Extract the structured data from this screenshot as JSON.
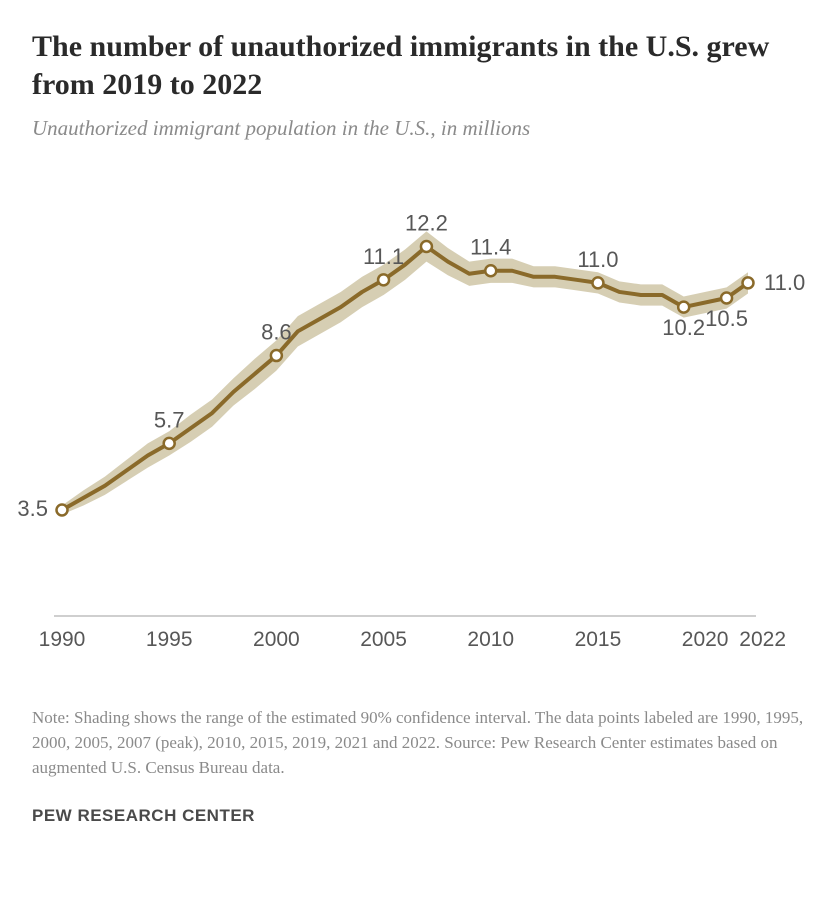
{
  "title": "The number of unauthorized immigrants in the U.S. grew from 2019 to 2022",
  "subtitle": "Unauthorized immigrant population in the U.S., in millions",
  "note": "Note: Shading shows the range of the estimated 90% confidence interval. The data points labeled are 1990, 1995, 2000, 2005, 2007 (peak), 2010, 2015, 2019, 2021 and 2022. Source: Pew Research Center estimates based on augmented U.S. Census Bureau data.",
  "attribution": "PEW RESEARCH CENTER",
  "chart": {
    "type": "line",
    "x_domain": [
      1990,
      2022
    ],
    "y_domain": [
      0,
      14
    ],
    "line_color": "#8a6a2a",
    "line_width": 4,
    "marker_radius": 5.5,
    "marker_fill": "#ffffff",
    "marker_stroke": "#8a6a2a",
    "marker_stroke_width": 2.5,
    "ci_color": "#d6ceb3",
    "ci_opacity": 1.0,
    "axis_color": "#bfbfbf",
    "axis_width": 1.5,
    "background": "#ffffff",
    "x_ticks": [
      1990,
      1995,
      2000,
      2005,
      2010,
      2015,
      2020,
      2022
    ],
    "x_tick_labels": [
      "1990",
      "1995",
      "2000",
      "2005",
      "2010",
      "2015",
      "2020",
      "2022"
    ],
    "series": [
      {
        "year": 1990,
        "value": 3.5,
        "ci_lo": 3.35,
        "ci_hi": 3.65,
        "marker": true,
        "label": "3.5",
        "label_pos": "left"
      },
      {
        "year": 1991,
        "value": 3.9,
        "ci_lo": 3.65,
        "ci_hi": 4.15
      },
      {
        "year": 1992,
        "value": 4.3,
        "ci_lo": 4.0,
        "ci_hi": 4.6
      },
      {
        "year": 1993,
        "value": 4.8,
        "ci_lo": 4.45,
        "ci_hi": 5.15
      },
      {
        "year": 1994,
        "value": 5.3,
        "ci_lo": 4.9,
        "ci_hi": 5.7
      },
      {
        "year": 1995,
        "value": 5.7,
        "ci_lo": 5.3,
        "ci_hi": 6.1,
        "marker": true,
        "label": "5.7",
        "label_pos": "above"
      },
      {
        "year": 1996,
        "value": 6.2,
        "ci_lo": 5.75,
        "ci_hi": 6.65
      },
      {
        "year": 1997,
        "value": 6.7,
        "ci_lo": 6.25,
        "ci_hi": 7.15
      },
      {
        "year": 1998,
        "value": 7.4,
        "ci_lo": 6.95,
        "ci_hi": 7.85
      },
      {
        "year": 1999,
        "value": 8.0,
        "ci_lo": 7.5,
        "ci_hi": 8.5
      },
      {
        "year": 2000,
        "value": 8.6,
        "ci_lo": 8.1,
        "ci_hi": 9.1,
        "marker": true,
        "label": "8.6",
        "label_pos": "above"
      },
      {
        "year": 2001,
        "value": 9.4,
        "ci_lo": 8.9,
        "ci_hi": 9.9
      },
      {
        "year": 2002,
        "value": 9.8,
        "ci_lo": 9.3,
        "ci_hi": 10.3
      },
      {
        "year": 2003,
        "value": 10.2,
        "ci_lo": 9.7,
        "ci_hi": 10.7
      },
      {
        "year": 2004,
        "value": 10.7,
        "ci_lo": 10.2,
        "ci_hi": 11.2
      },
      {
        "year": 2005,
        "value": 11.1,
        "ci_lo": 10.6,
        "ci_hi": 11.6,
        "marker": true,
        "label": "11.1",
        "label_pos": "above"
      },
      {
        "year": 2006,
        "value": 11.6,
        "ci_lo": 11.1,
        "ci_hi": 12.1
      },
      {
        "year": 2007,
        "value": 12.2,
        "ci_lo": 11.7,
        "ci_hi": 12.7,
        "marker": true,
        "label": "12.2",
        "label_pos": "above"
      },
      {
        "year": 2008,
        "value": 11.7,
        "ci_lo": 11.25,
        "ci_hi": 12.15
      },
      {
        "year": 2009,
        "value": 11.3,
        "ci_lo": 10.9,
        "ci_hi": 11.7
      },
      {
        "year": 2010,
        "value": 11.4,
        "ci_lo": 11.0,
        "ci_hi": 11.8,
        "marker": true,
        "label": "11.4",
        "label_pos": "above"
      },
      {
        "year": 2011,
        "value": 11.4,
        "ci_lo": 11.0,
        "ci_hi": 11.8
      },
      {
        "year": 2012,
        "value": 11.2,
        "ci_lo": 10.85,
        "ci_hi": 11.55
      },
      {
        "year": 2013,
        "value": 11.2,
        "ci_lo": 10.85,
        "ci_hi": 11.55
      },
      {
        "year": 2014,
        "value": 11.1,
        "ci_lo": 10.75,
        "ci_hi": 11.45
      },
      {
        "year": 2015,
        "value": 11.0,
        "ci_lo": 10.65,
        "ci_hi": 11.35,
        "marker": true,
        "label": "11.0",
        "label_pos": "above"
      },
      {
        "year": 2016,
        "value": 10.7,
        "ci_lo": 10.35,
        "ci_hi": 11.05
      },
      {
        "year": 2017,
        "value": 10.6,
        "ci_lo": 10.25,
        "ci_hi": 10.95
      },
      {
        "year": 2018,
        "value": 10.6,
        "ci_lo": 10.25,
        "ci_hi": 10.95
      },
      {
        "year": 2019,
        "value": 10.2,
        "ci_lo": 9.85,
        "ci_hi": 10.55,
        "marker": true,
        "label": "10.2",
        "label_pos": "below"
      },
      {
        "year": 2021,
        "value": 10.5,
        "ci_lo": 10.15,
        "ci_hi": 10.85,
        "marker": true,
        "label": "10.5",
        "label_pos": "below"
      },
      {
        "year": 2022,
        "value": 11.0,
        "ci_lo": 10.65,
        "ci_hi": 11.35,
        "marker": true,
        "label": "11.0",
        "label_pos": "right"
      }
    ]
  }
}
